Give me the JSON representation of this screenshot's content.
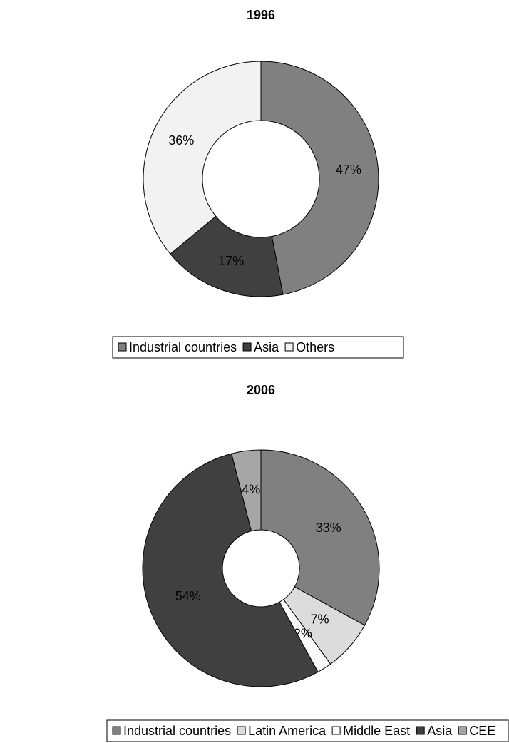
{
  "chart_data": [
    {
      "type": "donut",
      "title": "1996",
      "categories": [
        "Industrial countries",
        "Asia",
        "Others"
      ],
      "values": [
        47,
        17,
        36
      ],
      "value_labels": [
        "47%",
        "17%",
        "36%"
      ],
      "colors": [
        "#808080",
        "#404040",
        "#f2f2f2"
      ]
    },
    {
      "type": "donut",
      "title": "2006",
      "categories": [
        "Industrial countries",
        "Latin America",
        "Middle East",
        "Asia",
        "CEE"
      ],
      "values": [
        33,
        7,
        2,
        54,
        4
      ],
      "value_labels": [
        "33%",
        "7%",
        "2%",
        "54%",
        "4%"
      ],
      "colors": [
        "#808080",
        "#dcdcdc",
        "#fafafa",
        "#404040",
        "#a6a6a6"
      ]
    }
  ]
}
